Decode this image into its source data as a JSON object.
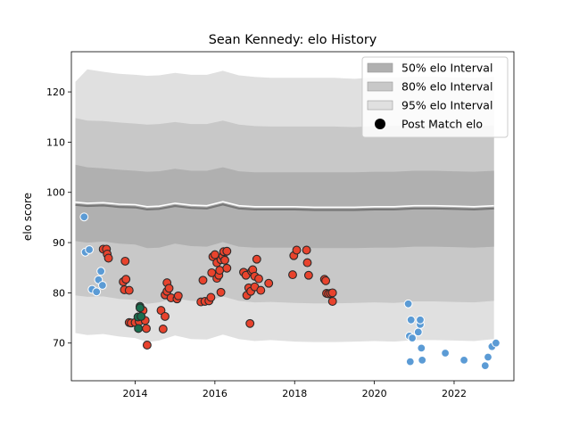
{
  "chart_data": {
    "type": "scatter",
    "title": "Sean Kennedy: elo History",
    "xlabel": "",
    "ylabel": "elo score",
    "xlim": [
      2012.4,
      2023.5
    ],
    "ylim": [
      62.5,
      128.0
    ],
    "x_ticks": [
      2014,
      2016,
      2018,
      2020,
      2022
    ],
    "y_ticks": [
      70,
      80,
      90,
      100,
      110,
      120
    ],
    "grid": false,
    "legend_position": "top-right",
    "legend": [
      {
        "label": "50% elo Interval",
        "kind": "patch",
        "color": "#b0b0b0"
      },
      {
        "label": "80% elo Interval",
        "kind": "patch",
        "color": "#c8c8c8"
      },
      {
        "label": "95% elo Interval",
        "kind": "patch",
        "color": "#e0e0e0"
      },
      {
        "label": "Post Match elo",
        "kind": "marker",
        "color": "#000000"
      }
    ],
    "bands": {
      "x": [
        2012.5,
        2012.8,
        2013.2,
        2013.6,
        2014.0,
        2014.3,
        2014.6,
        2015.0,
        2015.4,
        2015.8,
        2016.2,
        2016.6,
        2017.0,
        2017.4,
        2018.0,
        2018.5,
        2019.0,
        2019.5,
        2020.0,
        2020.5,
        2021.0,
        2021.5,
        2022.0,
        2022.5,
        2023.0
      ],
      "mean": [
        97.5,
        97.3,
        97.4,
        97.1,
        97.0,
        96.6,
        96.7,
        97.3,
        96.9,
        96.8,
        97.6,
        96.8,
        96.6,
        96.6,
        96.6,
        96.5,
        96.5,
        96.5,
        96.6,
        96.6,
        96.8,
        96.8,
        96.7,
        96.6,
        96.8
      ],
      "p50": [
        [
          90.3,
          105.5
        ],
        [
          90.0,
          105.0
        ],
        [
          90.2,
          104.8
        ],
        [
          89.8,
          104.5
        ],
        [
          89.6,
          104.3
        ],
        [
          88.9,
          104.1
        ],
        [
          89.0,
          104.2
        ],
        [
          89.8,
          104.7
        ],
        [
          89.3,
          104.3
        ],
        [
          89.2,
          104.3
        ],
        [
          90.1,
          105.0
        ],
        [
          89.2,
          104.2
        ],
        [
          89.0,
          104.0
        ],
        [
          89.0,
          104.0
        ],
        [
          89.0,
          104.0
        ],
        [
          88.9,
          104.0
        ],
        [
          88.9,
          104.0
        ],
        [
          88.9,
          104.0
        ],
        [
          89.0,
          104.1
        ],
        [
          89.0,
          104.1
        ],
        [
          89.2,
          104.3
        ],
        [
          89.2,
          104.3
        ],
        [
          89.1,
          104.2
        ],
        [
          89.0,
          104.1
        ],
        [
          89.2,
          104.3
        ]
      ],
      "p80": [
        [
          79.5,
          114.8
        ],
        [
          79.2,
          114.3
        ],
        [
          79.3,
          114.2
        ],
        [
          78.8,
          113.9
        ],
        [
          78.6,
          113.7
        ],
        [
          77.8,
          113.5
        ],
        [
          78.1,
          113.6
        ],
        [
          78.9,
          114.0
        ],
        [
          78.4,
          113.6
        ],
        [
          78.3,
          113.6
        ],
        [
          79.3,
          114.3
        ],
        [
          78.4,
          113.5
        ],
        [
          78.1,
          113.2
        ],
        [
          78.2,
          113.1
        ],
        [
          78.0,
          113.1
        ],
        [
          77.9,
          113.1
        ],
        [
          77.9,
          113.1
        ],
        [
          78.0,
          113.0
        ],
        [
          78.1,
          113.2
        ],
        [
          78.0,
          113.2
        ],
        [
          78.3,
          113.3
        ],
        [
          78.3,
          113.3
        ],
        [
          78.2,
          113.2
        ],
        [
          78.1,
          113.1
        ],
        [
          78.4,
          113.3
        ]
      ],
      "p95": [
        [
          72.0,
          122.0
        ],
        [
          71.6,
          124.5
        ],
        [
          71.8,
          124.0
        ],
        [
          71.3,
          123.6
        ],
        [
          71.0,
          123.4
        ],
        [
          70.2,
          123.2
        ],
        [
          70.5,
          123.3
        ],
        [
          71.5,
          123.8
        ],
        [
          70.8,
          123.4
        ],
        [
          70.7,
          123.4
        ],
        [
          71.7,
          124.2
        ],
        [
          70.8,
          123.3
        ],
        [
          70.4,
          123.0
        ],
        [
          70.6,
          122.8
        ],
        [
          70.3,
          122.8
        ],
        [
          70.2,
          122.8
        ],
        [
          70.2,
          122.8
        ],
        [
          70.3,
          122.6
        ],
        [
          70.4,
          122.9
        ],
        [
          70.3,
          122.9
        ],
        [
          70.6,
          123.0
        ],
        [
          70.6,
          123.0
        ],
        [
          70.5,
          122.9
        ],
        [
          70.4,
          122.8
        ],
        [
          70.8,
          123.0
        ]
      ]
    },
    "series": [
      {
        "marker_color": "#5b9bd5",
        "points": [
          [
            2012.72,
            95.1
          ],
          [
            2012.75,
            88.1
          ],
          [
            2012.85,
            88.6
          ],
          [
            2012.92,
            80.7
          ],
          [
            2013.03,
            80.2
          ],
          [
            2013.08,
            82.6
          ],
          [
            2013.14,
            84.3
          ],
          [
            2013.18,
            81.5
          ],
          [
            2020.85,
            77.8
          ],
          [
            2020.88,
            71.4
          ],
          [
            2020.92,
            74.6
          ],
          [
            2020.95,
            71.0
          ],
          [
            2020.9,
            66.3
          ],
          [
            2021.1,
            72.2
          ],
          [
            2021.15,
            73.7
          ],
          [
            2021.15,
            74.6
          ],
          [
            2021.18,
            69.0
          ],
          [
            2021.2,
            66.6
          ],
          [
            2021.78,
            68.0
          ],
          [
            2022.25,
            66.6
          ],
          [
            2022.78,
            65.5
          ],
          [
            2022.85,
            67.2
          ],
          [
            2022.95,
            69.3
          ],
          [
            2023.05,
            70.0
          ]
        ]
      },
      {
        "marker_color": "#e8432d",
        "points": [
          [
            2013.2,
            88.7
          ],
          [
            2013.28,
            88.7
          ],
          [
            2013.3,
            87.7
          ],
          [
            2013.33,
            86.9
          ],
          [
            2013.7,
            82.2
          ],
          [
            2013.73,
            80.6
          ],
          [
            2013.75,
            86.3
          ],
          [
            2013.77,
            82.7
          ],
          [
            2013.85,
            80.5
          ],
          [
            2013.85,
            74.1
          ],
          [
            2013.9,
            74.0
          ],
          [
            2014.0,
            74.1
          ],
          [
            2014.1,
            74.3
          ],
          [
            2014.2,
            76.5
          ],
          [
            2014.25,
            74.5
          ],
          [
            2014.28,
            72.9
          ],
          [
            2014.3,
            69.6
          ],
          [
            2014.65,
            76.5
          ],
          [
            2014.7,
            72.8
          ],
          [
            2014.75,
            75.3
          ],
          [
            2014.75,
            79.6
          ],
          [
            2014.8,
            80.3
          ],
          [
            2014.8,
            82.0
          ],
          [
            2014.85,
            80.9
          ],
          [
            2014.9,
            79.0
          ],
          [
            2015.05,
            78.8
          ],
          [
            2015.08,
            79.4
          ],
          [
            2015.65,
            78.2
          ],
          [
            2015.7,
            82.5
          ],
          [
            2015.75,
            78.3
          ],
          [
            2015.85,
            78.4
          ],
          [
            2015.9,
            79.1
          ],
          [
            2015.92,
            84.0
          ],
          [
            2015.95,
            87.2
          ],
          [
            2016.0,
            87.6
          ],
          [
            2016.05,
            86.0
          ],
          [
            2016.05,
            82.9
          ],
          [
            2016.1,
            83.5
          ],
          [
            2016.12,
            84.5
          ],
          [
            2016.15,
            86.6
          ],
          [
            2016.15,
            80.1
          ],
          [
            2016.2,
            87.3
          ],
          [
            2016.22,
            88.2
          ],
          [
            2016.25,
            86.5
          ],
          [
            2016.3,
            88.3
          ],
          [
            2016.3,
            84.9
          ],
          [
            2016.72,
            84.1
          ],
          [
            2016.78,
            83.5
          ],
          [
            2016.8,
            79.5
          ],
          [
            2016.85,
            81.0
          ],
          [
            2016.88,
            73.9
          ],
          [
            2016.9,
            80.3
          ],
          [
            2016.92,
            84.3
          ],
          [
            2016.95,
            84.6
          ],
          [
            2017.0,
            81.2
          ],
          [
            2017.0,
            83.3
          ],
          [
            2017.05,
            86.7
          ],
          [
            2017.1,
            82.8
          ],
          [
            2017.15,
            80.5
          ],
          [
            2017.35,
            81.9
          ],
          [
            2017.95,
            83.6
          ],
          [
            2017.98,
            87.4
          ],
          [
            2018.05,
            88.5
          ],
          [
            2018.3,
            88.5
          ],
          [
            2018.32,
            86.0
          ],
          [
            2018.35,
            83.5
          ],
          [
            2018.75,
            82.7
          ],
          [
            2018.78,
            82.4
          ],
          [
            2018.8,
            79.9
          ],
          [
            2018.85,
            79.8
          ],
          [
            2018.9,
            79.9
          ],
          [
            2018.95,
            80.0
          ],
          [
            2018.95,
            78.3
          ]
        ]
      },
      {
        "marker_color": "#1a6e4e",
        "points": [
          [
            2014.07,
            75.2
          ],
          [
            2014.08,
            72.9
          ],
          [
            2014.12,
            77.3
          ],
          [
            2014.12,
            77.0
          ],
          [
            2014.15,
            75.3
          ]
        ]
      }
    ]
  }
}
